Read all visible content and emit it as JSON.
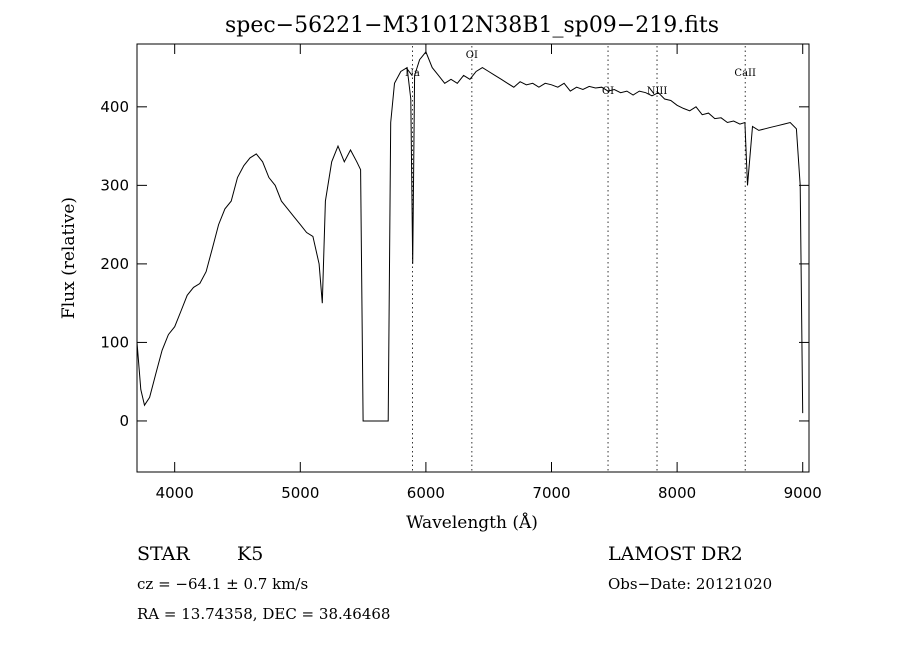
{
  "chart_data": {
    "type": "line",
    "title": "spec−56221−M31012N38B1_sp09−219.fits",
    "xlabel": "Wavelength (Å)",
    "ylabel": "Flux (relative)",
    "xlim": [
      3700,
      9050
    ],
    "ylim": [
      -65,
      480
    ],
    "x_ticks": [
      4000,
      5000,
      6000,
      7000,
      8000,
      9000
    ],
    "y_ticks": [
      0,
      100,
      200,
      300,
      400
    ],
    "series": [
      {
        "x": [
          3700,
          3730,
          3760,
          3800,
          3850,
          3900,
          3950,
          4000,
          4050,
          4100,
          4150,
          4200,
          4250,
          4300,
          4350,
          4400,
          4450,
          4500,
          4550,
          4600,
          4650,
          4700,
          4750,
          4800,
          4850,
          4900,
          4950,
          5000,
          5050,
          5100,
          5150,
          5175,
          5200,
          5250,
          5300,
          5350,
          5400,
          5450,
          5480,
          5500,
          5600,
          5700,
          5720,
          5750,
          5800,
          5850,
          5880,
          5895,
          5910,
          5950,
          6000,
          6050,
          6100,
          6150,
          6200,
          6250,
          6300,
          6350,
          6400,
          6450,
          6500,
          6550,
          6600,
          6650,
          6700,
          6750,
          6800,
          6850,
          6900,
          6950,
          7000,
          7050,
          7100,
          7150,
          7200,
          7250,
          7300,
          7350,
          7400,
          7450,
          7500,
          7550,
          7600,
          7650,
          7700,
          7750,
          7800,
          7850,
          7900,
          7950,
          8000,
          8050,
          8100,
          8150,
          8200,
          8250,
          8300,
          8350,
          8400,
          8450,
          8500,
          8540,
          8560,
          8600,
          8650,
          8700,
          8750,
          8800,
          8850,
          8900,
          8950,
          8980,
          9000
        ],
        "y": [
          100,
          40,
          20,
          30,
          60,
          90,
          110,
          120,
          140,
          160,
          170,
          175,
          190,
          220,
          250,
          270,
          280,
          310,
          325,
          335,
          340,
          330,
          310,
          300,
          280,
          270,
          260,
          250,
          240,
          235,
          200,
          150,
          280,
          330,
          350,
          330,
          345,
          330,
          320,
          0,
          0,
          0,
          380,
          430,
          445,
          450,
          410,
          200,
          440,
          460,
          470,
          450,
          440,
          430,
          435,
          430,
          440,
          435,
          445,
          450,
          445,
          440,
          435,
          430,
          425,
          432,
          428,
          430,
          425,
          430,
          428,
          425,
          430,
          420,
          425,
          422,
          426,
          424,
          425,
          420,
          422,
          418,
          420,
          415,
          420,
          418,
          414,
          418,
          410,
          408,
          402,
          398,
          395,
          400,
          390,
          392,
          385,
          386,
          380,
          382,
          378,
          380,
          300,
          375,
          370,
          372,
          374,
          376,
          378,
          380,
          372,
          300,
          10
        ]
      }
    ],
    "spectral_lines": [
      {
        "label": "Na",
        "x": 5893
      },
      {
        "label": "OI",
        "x": 6366
      },
      {
        "label": "OI",
        "x": 7450
      },
      {
        "label": "NIII",
        "x": 7840
      },
      {
        "label": "CaII",
        "x": 8542
      }
    ]
  },
  "info": {
    "class_label": "STAR",
    "subclass_label": "K5",
    "survey_label": "LAMOST DR2",
    "cz_text": "cz = −64.1 ± 0.7 km/s",
    "obs_date_text": "Obs−Date: 20121020",
    "radec_text": "RA =  13.74358, DEC =  38.46468"
  }
}
